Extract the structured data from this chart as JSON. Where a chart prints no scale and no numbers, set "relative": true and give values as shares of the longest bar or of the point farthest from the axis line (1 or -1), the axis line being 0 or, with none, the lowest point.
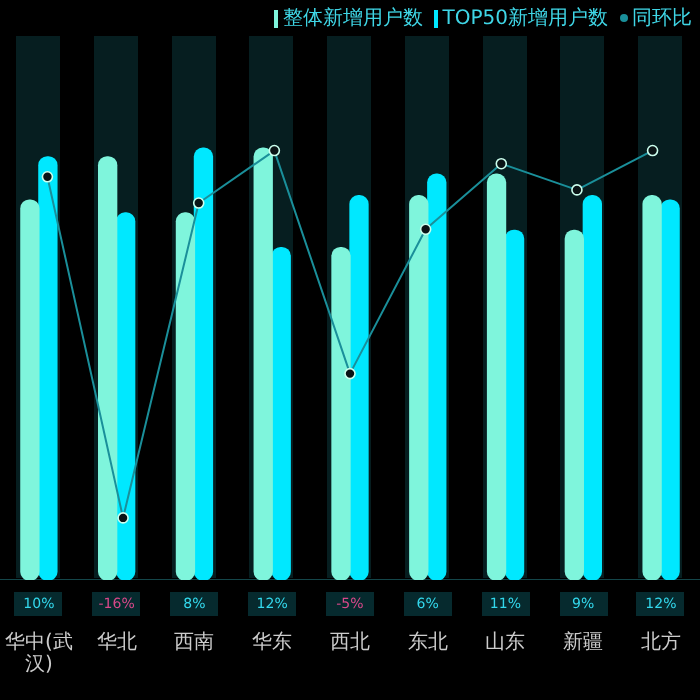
{
  "chart_data": [
    {
      "type": "bar",
      "relative": true,
      "legend": "top right",
      "categories": [
        "华中(武汉)",
        "华北",
        "西南",
        "华东",
        "西北",
        "东北",
        "山东",
        "新疆",
        "北方"
      ],
      "series": [
        {
          "name": "整体新增用户数",
          "color": "#7ff5dc",
          "values": [
            0.88,
            0.98,
            0.85,
            1,
            0.77,
            0.89,
            0.94,
            0.81,
            0.89
          ]
        },
        {
          "name": "TOP50新增用户数",
          "color": "#00e8ff",
          "values": [
            0.98,
            0.85,
            1,
            0.77,
            0.89,
            0.94,
            0.81,
            0.89,
            0.88
          ]
        }
      ]
    },
    {
      "type": "line",
      "legend": "top right",
      "marker": "circle",
      "categories": [
        null,
        null,
        null,
        null,
        null,
        null,
        null,
        null,
        null
      ],
      "series": [
        {
          "name": "同环比",
          "color": "#1a8f9a",
          "values": [
            10,
            -16,
            8,
            12,
            -5,
            6,
            11,
            9,
            12
          ],
          "value_labels": [
            "10%",
            "-16%",
            "8%",
            "12%",
            "-5%",
            "6%",
            "11%",
            "9%",
            "12%"
          ]
        }
      ]
    }
  ]
}
